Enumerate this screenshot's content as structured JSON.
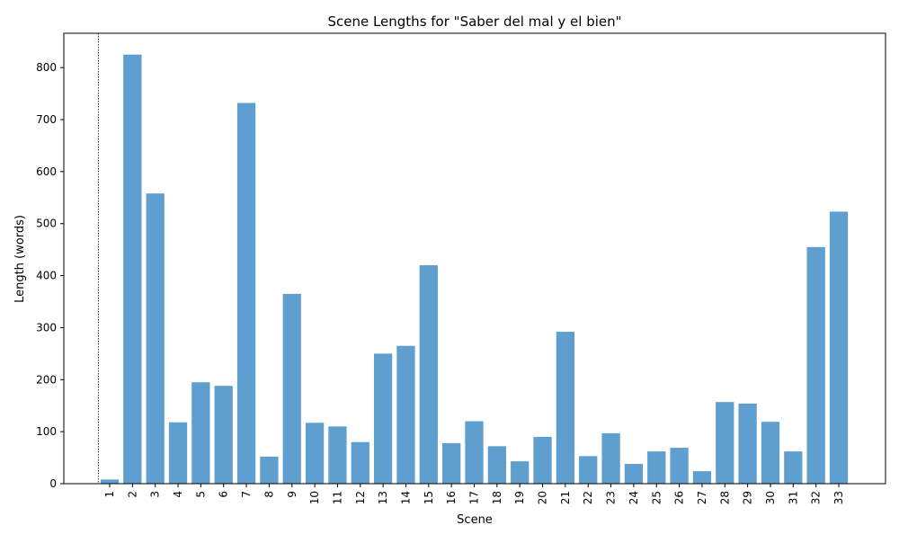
{
  "chart_data": {
    "type": "bar",
    "title": "Scene Lengths for \"Saber del mal y el bien\"",
    "xlabel": "Scene",
    "ylabel": "Length (words)",
    "categories": [
      "1",
      "2",
      "3",
      "4",
      "5",
      "6",
      "7",
      "8",
      "9",
      "10",
      "11",
      "12",
      "13",
      "14",
      "15",
      "16",
      "17",
      "18",
      "19",
      "20",
      "21",
      "22",
      "23",
      "24",
      "25",
      "26",
      "27",
      "28",
      "29",
      "30",
      "31",
      "32",
      "33"
    ],
    "values": [
      8,
      825,
      558,
      118,
      195,
      188,
      732,
      52,
      365,
      117,
      110,
      80,
      250,
      265,
      420,
      78,
      120,
      72,
      43,
      90,
      292,
      53,
      97,
      38,
      62,
      69,
      24,
      157,
      154,
      119,
      62,
      455,
      523
    ],
    "ylim": [
      0,
      866
    ],
    "yticks": [
      0,
      100,
      200,
      300,
      400,
      500,
      600,
      700,
      800
    ],
    "bar_color": "#5f9fcf",
    "reference_line_color": "#000000",
    "grid": false
  }
}
